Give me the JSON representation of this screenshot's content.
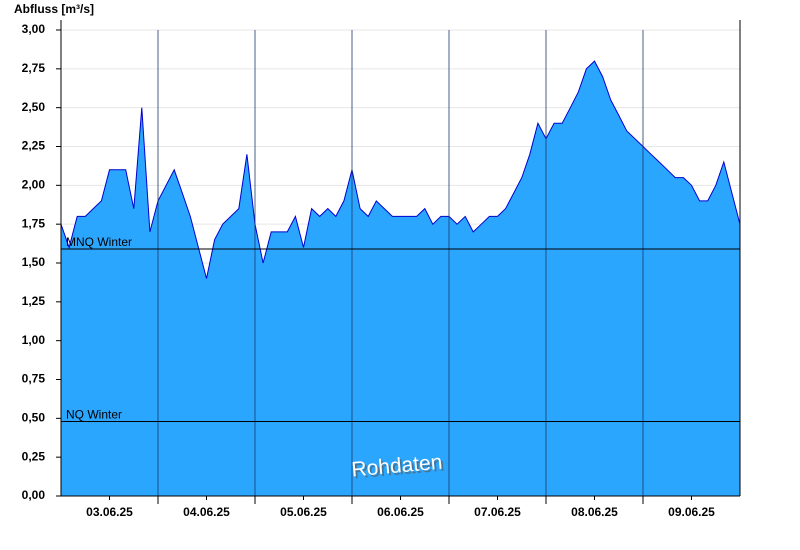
{
  "chart_data": {
    "type": "area",
    "y_label": "Abfluss [m³/s]",
    "watermark": "Rohdaten",
    "fill_color": "#2ba6ff",
    "line_color": "#0000d0",
    "grid": true,
    "xlim": [
      0,
      168
    ],
    "x_gridlines": [
      24,
      48,
      72,
      96,
      120,
      144
    ],
    "xticks": [
      {
        "value": 12,
        "label": "03.06.25"
      },
      {
        "value": 36,
        "label": "04.06.25"
      },
      {
        "value": 60,
        "label": "05.06.25"
      },
      {
        "value": 84,
        "label": "06.06.25"
      },
      {
        "value": 108,
        "label": "07.06.25"
      },
      {
        "value": 132,
        "label": "08.06.25"
      },
      {
        "value": 156,
        "label": "09.06.25"
      }
    ],
    "ylim": [
      0,
      3
    ],
    "yticks": [
      {
        "value": 0,
        "label": "0,00"
      },
      {
        "value": 0.25,
        "label": "0,25"
      },
      {
        "value": 0.5,
        "label": "0,50"
      },
      {
        "value": 0.75,
        "label": "0,75"
      },
      {
        "value": 1,
        "label": "1,00"
      },
      {
        "value": 1.25,
        "label": "1,25"
      },
      {
        "value": 1.5,
        "label": "1,50"
      },
      {
        "value": 1.75,
        "label": "1,75"
      },
      {
        "value": 2,
        "label": "2,00"
      },
      {
        "value": 2.25,
        "label": "2,25"
      },
      {
        "value": 2.5,
        "label": "2,50"
      },
      {
        "value": 2.75,
        "label": "2,75"
      },
      {
        "value": 3,
        "label": "3,00"
      }
    ],
    "reference_lines": [
      {
        "label": "MNQ Winter",
        "value": 1.59
      },
      {
        "label": "NQ Winter",
        "value": 0.48
      }
    ],
    "x": [
      0,
      2,
      4,
      6,
      8,
      10,
      12,
      14,
      16,
      18,
      20,
      22,
      24,
      26,
      28,
      30,
      32,
      34,
      36,
      38,
      40,
      42,
      44,
      46,
      48,
      50,
      52,
      54,
      56,
      58,
      60,
      62,
      64,
      66,
      68,
      70,
      72,
      74,
      76,
      78,
      80,
      82,
      84,
      86,
      88,
      90,
      92,
      94,
      96,
      98,
      100,
      102,
      104,
      106,
      108,
      110,
      112,
      114,
      116,
      118,
      120,
      122,
      124,
      126,
      128,
      130,
      132,
      134,
      136,
      138,
      140,
      142,
      144,
      146,
      148,
      150,
      152,
      154,
      156,
      158,
      160,
      162,
      164,
      166,
      168
    ],
    "values": [
      1.75,
      1.6,
      1.8,
      1.8,
      1.85,
      1.9,
      2.1,
      2.1,
      2.1,
      1.85,
      2.5,
      1.7,
      1.9,
      2.0,
      2.1,
      1.95,
      1.8,
      1.6,
      1.4,
      1.65,
      1.75,
      1.8,
      1.85,
      2.2,
      1.75,
      1.5,
      1.7,
      1.7,
      1.7,
      1.8,
      1.6,
      1.85,
      1.8,
      1.85,
      1.8,
      1.9,
      2.1,
      1.85,
      1.8,
      1.9,
      1.85,
      1.8,
      1.8,
      1.8,
      1.8,
      1.85,
      1.75,
      1.8,
      1.8,
      1.75,
      1.8,
      1.7,
      1.75,
      1.8,
      1.8,
      1.85,
      1.95,
      2.05,
      2.2,
      2.4,
      2.3,
      2.4,
      2.4,
      2.5,
      2.6,
      2.75,
      2.8,
      2.7,
      2.55,
      2.45,
      2.35,
      2.3,
      2.25,
      2.2,
      2.15,
      2.1,
      2.05,
      2.05,
      2.0,
      1.9,
      1.9,
      2.0,
      2.15,
      1.95,
      1.75
    ]
  }
}
